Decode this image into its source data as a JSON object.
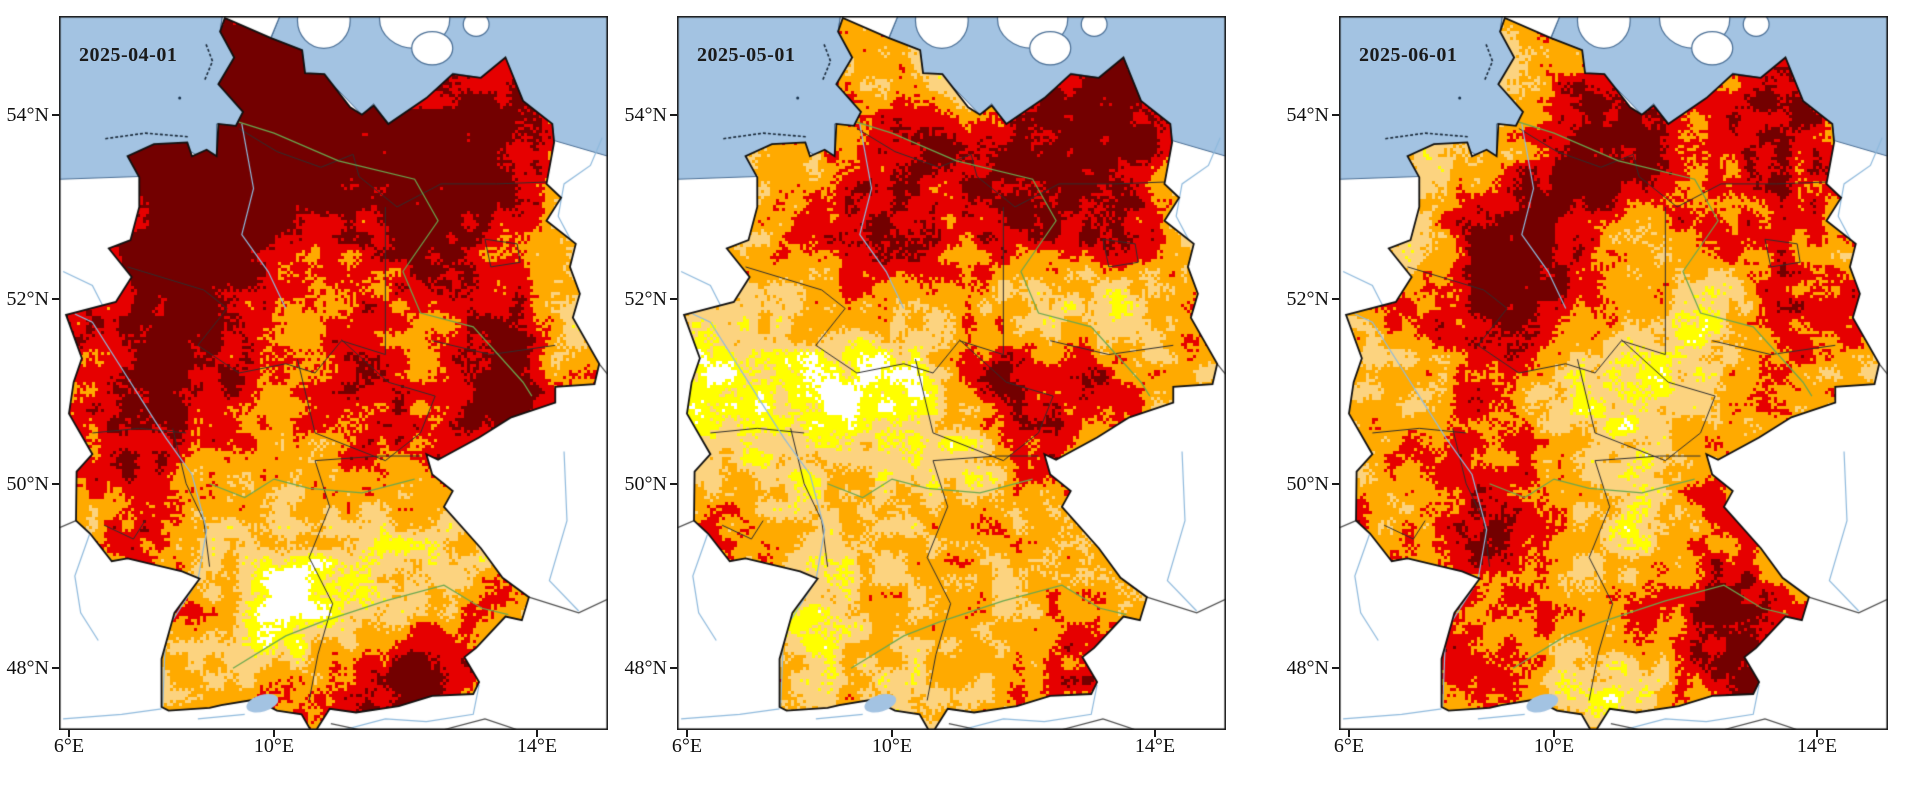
{
  "figure": {
    "background": "#ffffff"
  },
  "axes": {
    "lat_labels": [
      "54°N",
      "52°N",
      "50°N",
      "48°N"
    ],
    "lon_labels": [
      "6°E",
      "10°E",
      "14°E"
    ],
    "lat_values": [
      54,
      52,
      50,
      48
    ],
    "lon_values": [
      6,
      10,
      14
    ]
  },
  "palette": {
    "sea": "#a3c3e2",
    "coast_line": "#4a6f96",
    "land_outside": "#ffffff",
    "severity_colors": [
      "#ffffff",
      "#ffff00",
      "#fcd37f",
      "#ffaa00",
      "#e60000",
      "#730000"
    ],
    "severity_thresholds": [
      0.15,
      0.27,
      0.43,
      0.61,
      0.79
    ],
    "country_outline": "#101010",
    "state_border": "#2f2f2f",
    "neighbor_border": "#4d4d4d",
    "river_blue": "#8fbadd",
    "river_green": "#6aa84f",
    "frame": "#1a1a1a",
    "label_color": "#111111"
  },
  "maps": [
    {
      "date": "2025-04-01",
      "seed": 11,
      "base": 0.56,
      "blobs": [
        [
          9.3,
          54.05,
          2.6,
          1.25,
          0.4
        ],
        [
          7.9,
          52.5,
          1.8,
          1.35,
          0.4
        ],
        [
          12.6,
          53.4,
          2.0,
          1.2,
          0.28
        ],
        [
          13.3,
          51.1,
          0.9,
          0.6,
          0.26
        ],
        [
          11.1,
          51.0,
          1.0,
          0.7,
          0.18
        ],
        [
          9.0,
          50.3,
          0.8,
          0.6,
          0.12
        ],
        [
          7.3,
          50.6,
          0.9,
          0.8,
          0.1
        ],
        [
          12.1,
          47.95,
          1.8,
          0.5,
          0.22
        ],
        [
          9.2,
          48.7,
          1.2,
          0.8,
          -0.28
        ],
        [
          11.2,
          49.2,
          1.2,
          0.8,
          -0.26
        ],
        [
          10.3,
          48.3,
          1.0,
          0.6,
          -0.18
        ],
        [
          14.6,
          51.35,
          0.55,
          0.5,
          -0.25
        ],
        [
          9.9,
          49.0,
          0.5,
          0.35,
          -0.2
        ]
      ]
    },
    {
      "date": "2025-05-01",
      "seed": 22,
      "base": 0.46,
      "blobs": [
        [
          12.9,
          53.8,
          1.9,
          1.05,
          0.42
        ],
        [
          11.6,
          52.9,
          1.2,
          0.8,
          0.22
        ],
        [
          8.7,
          53.25,
          0.95,
          0.8,
          0.3
        ],
        [
          9.95,
          53.75,
          0.7,
          0.5,
          0.22
        ],
        [
          9.6,
          52.5,
          0.8,
          0.6,
          0.25
        ],
        [
          11.3,
          51.2,
          0.9,
          0.7,
          0.32
        ],
        [
          12.6,
          51.0,
          0.9,
          0.6,
          0.15
        ],
        [
          6.9,
          51.2,
          1.3,
          1.0,
          -0.34
        ],
        [
          9.3,
          50.9,
          1.4,
          0.9,
          -0.22
        ],
        [
          11.9,
          52.15,
          0.9,
          0.55,
          -0.2
        ],
        [
          8.2,
          48.5,
          0.8,
          1.0,
          -0.24
        ],
        [
          12.9,
          48.35,
          1.0,
          0.5,
          0.18
        ],
        [
          11.4,
          48.75,
          1.0,
          0.6,
          -0.15
        ],
        [
          12.4,
          47.7,
          1.0,
          0.35,
          0.18
        ],
        [
          7.8,
          50.1,
          0.8,
          0.6,
          -0.15
        ]
      ]
    },
    {
      "date": "2025-06-01",
      "seed": 33,
      "base": 0.54,
      "blobs": [
        [
          9.1,
          52.6,
          1.3,
          1.0,
          0.32
        ],
        [
          10.6,
          53.7,
          1.0,
          0.6,
          0.22
        ],
        [
          12.6,
          53.5,
          1.9,
          1.1,
          0.22
        ],
        [
          13.6,
          51.9,
          0.7,
          0.6,
          0.12
        ],
        [
          11.1,
          51.1,
          1.5,
          0.8,
          -0.3
        ],
        [
          12.1,
          51.9,
          0.8,
          0.5,
          -0.22
        ],
        [
          10.3,
          51.9,
          0.6,
          0.4,
          -0.15
        ],
        [
          8.4,
          48.9,
          0.9,
          0.95,
          0.26
        ],
        [
          12.8,
          48.8,
          1.1,
          0.85,
          0.28
        ],
        [
          13.2,
          47.9,
          0.8,
          0.4,
          0.2
        ],
        [
          10.0,
          47.7,
          1.1,
          0.4,
          -0.15
        ],
        [
          10.9,
          49.0,
          0.9,
          0.7,
          -0.12
        ],
        [
          6.9,
          50.2,
          0.8,
          0.7,
          -0.1
        ],
        [
          9.0,
          54.3,
          0.6,
          0.55,
          -0.18
        ]
      ]
    }
  ]
}
